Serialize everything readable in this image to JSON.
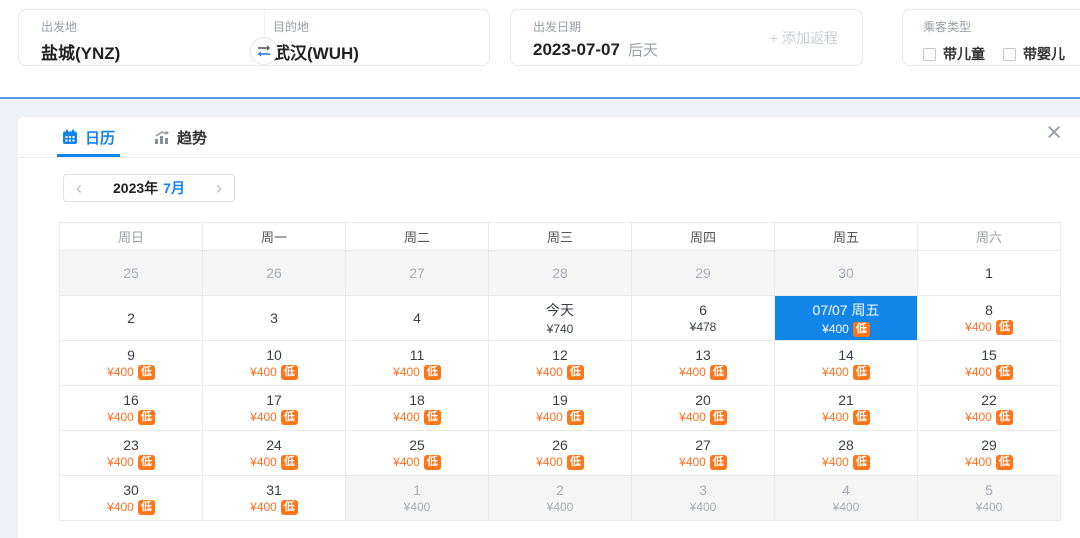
{
  "colors": {
    "accent_blue": "#1283e8",
    "selected_cell_blue": "#1285e8",
    "divider_blue": "#5b9ce6",
    "price_orange": "#ff7023",
    "badge_orange": "#ff7519",
    "muted_text": "#9aa0a6",
    "muted_cell_bg": "#f5f5f6"
  },
  "search_bar": {
    "origin": {
      "label": "出发地",
      "value": "盐城(YNZ)"
    },
    "destination": {
      "label": "目的地",
      "value": "武汉(WUH)"
    },
    "swap_icon": "swap-horizontal-arrows",
    "date": {
      "label": "出发日期",
      "value": "2023-07-07",
      "suffix": "后天"
    },
    "add_return_label": "+ 添加返程",
    "passenger": {
      "label": "乘客类型",
      "options": [
        {
          "label": "带儿童",
          "checked": false
        },
        {
          "label": "带婴儿",
          "checked": false
        }
      ]
    }
  },
  "panel": {
    "tabs": [
      {
        "label": "日历",
        "icon": "calendar-icon",
        "active": true
      },
      {
        "label": "趋势",
        "icon": "trend-chart-icon",
        "active": false
      }
    ],
    "close_icon": "×",
    "month_nav": {
      "prev": "‹",
      "year": "2023年",
      "month": "7月",
      "next": "›"
    }
  },
  "calendar": {
    "weekdays": [
      {
        "label": "周日",
        "muted": true
      },
      {
        "label": "周一",
        "muted": false
      },
      {
        "label": "周二",
        "muted": false
      },
      {
        "label": "周三",
        "muted": false
      },
      {
        "label": "周四",
        "muted": false
      },
      {
        "label": "周五",
        "muted": false
      },
      {
        "label": "周六",
        "muted": true
      }
    ],
    "weeks": [
      [
        {
          "day": "25",
          "state": "muted"
        },
        {
          "day": "26",
          "state": "muted"
        },
        {
          "day": "27",
          "state": "muted"
        },
        {
          "day": "28",
          "state": "muted"
        },
        {
          "day": "29",
          "state": "muted"
        },
        {
          "day": "30",
          "state": "muted"
        },
        {
          "day": "1"
        }
      ],
      [
        {
          "day": "2"
        },
        {
          "day": "3"
        },
        {
          "day": "4"
        },
        {
          "day": "今天",
          "price": "¥740",
          "price_style": "dark"
        },
        {
          "day": "6",
          "price": "¥478",
          "price_style": "dark"
        },
        {
          "day": "07/07 周五",
          "price": "¥400",
          "badge": "低",
          "state": "selected"
        },
        {
          "day": "8",
          "price": "¥400",
          "badge": "低",
          "price_style": "orange"
        }
      ],
      [
        {
          "day": "9",
          "price": "¥400",
          "badge": "低",
          "price_style": "orange"
        },
        {
          "day": "10",
          "price": "¥400",
          "badge": "低",
          "price_style": "orange"
        },
        {
          "day": "11",
          "price": "¥400",
          "badge": "低",
          "price_style": "orange"
        },
        {
          "day": "12",
          "price": "¥400",
          "badge": "低",
          "price_style": "orange"
        },
        {
          "day": "13",
          "price": "¥400",
          "badge": "低",
          "price_style": "orange"
        },
        {
          "day": "14",
          "price": "¥400",
          "badge": "低",
          "price_style": "orange"
        },
        {
          "day": "15",
          "price": "¥400",
          "badge": "低",
          "price_style": "orange"
        }
      ],
      [
        {
          "day": "16",
          "price": "¥400",
          "badge": "低",
          "price_style": "orange"
        },
        {
          "day": "17",
          "price": "¥400",
          "badge": "低",
          "price_style": "orange"
        },
        {
          "day": "18",
          "price": "¥400",
          "badge": "低",
          "price_style": "orange"
        },
        {
          "day": "19",
          "price": "¥400",
          "badge": "低",
          "price_style": "orange"
        },
        {
          "day": "20",
          "price": "¥400",
          "badge": "低",
          "price_style": "orange"
        },
        {
          "day": "21",
          "price": "¥400",
          "badge": "低",
          "price_style": "orange"
        },
        {
          "day": "22",
          "price": "¥400",
          "badge": "低",
          "price_style": "orange"
        }
      ],
      [
        {
          "day": "23",
          "price": "¥400",
          "badge": "低",
          "price_style": "orange"
        },
        {
          "day": "24",
          "price": "¥400",
          "badge": "低",
          "price_style": "orange"
        },
        {
          "day": "25",
          "price": "¥400",
          "badge": "低",
          "price_style": "orange"
        },
        {
          "day": "26",
          "price": "¥400",
          "badge": "低",
          "price_style": "orange"
        },
        {
          "day": "27",
          "price": "¥400",
          "badge": "低",
          "price_style": "orange"
        },
        {
          "day": "28",
          "price": "¥400",
          "badge": "低",
          "price_style": "orange"
        },
        {
          "day": "29",
          "price": "¥400",
          "badge": "低",
          "price_style": "orange"
        }
      ],
      [
        {
          "day": "30",
          "price": "¥400",
          "badge": "低",
          "price_style": "orange"
        },
        {
          "day": "31",
          "price": "¥400",
          "badge": "低",
          "price_style": "orange"
        },
        {
          "day": "1",
          "price": "¥400",
          "state": "muted",
          "price_style": "muted"
        },
        {
          "day": "2",
          "price": "¥400",
          "state": "muted",
          "price_style": "muted"
        },
        {
          "day": "3",
          "price": "¥400",
          "state": "muted",
          "price_style": "muted"
        },
        {
          "day": "4",
          "price": "¥400",
          "state": "muted",
          "price_style": "muted"
        },
        {
          "day": "5",
          "price": "¥400",
          "state": "muted",
          "price_style": "muted"
        }
      ]
    ]
  }
}
